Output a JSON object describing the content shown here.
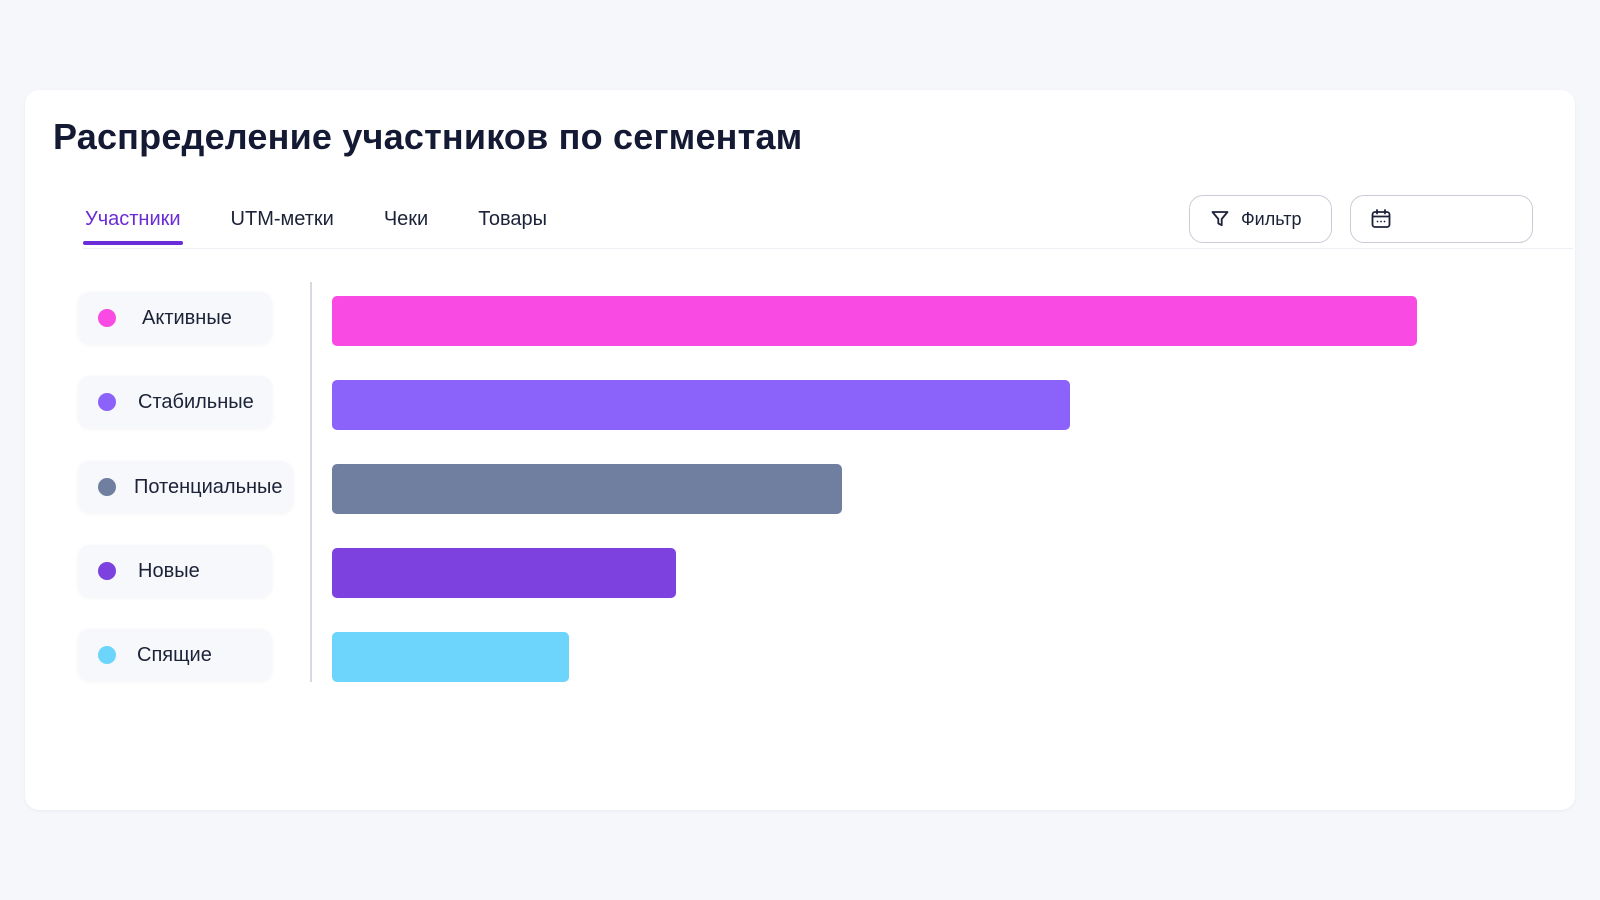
{
  "header": {
    "title": "Распределение участников по сегментам"
  },
  "tabs": [
    {
      "label": "Участники",
      "active": true
    },
    {
      "label": "UTM-метки",
      "active": false
    },
    {
      "label": "Чеки",
      "active": false
    },
    {
      "label": "Товары",
      "active": false
    }
  ],
  "toolbar": {
    "filter_label": "Фильтр",
    "filter_icon": "filter-icon",
    "date_icon": "calendar-icon"
  },
  "chart_data": {
    "type": "bar",
    "orientation": "horizontal",
    "categories": [
      "Активные",
      "Стабильные",
      "Потенциальные",
      "Новые",
      "Спящие"
    ],
    "values": [
      100,
      68,
      47,
      31.7,
      21.8
    ],
    "colors": [
      "#f94ae3",
      "#8b63fb",
      "#707fa0",
      "#7c41de",
      "#6dd4fb"
    ],
    "xlim": [
      0,
      100
    ],
    "grid": false,
    "legend": "left"
  }
}
